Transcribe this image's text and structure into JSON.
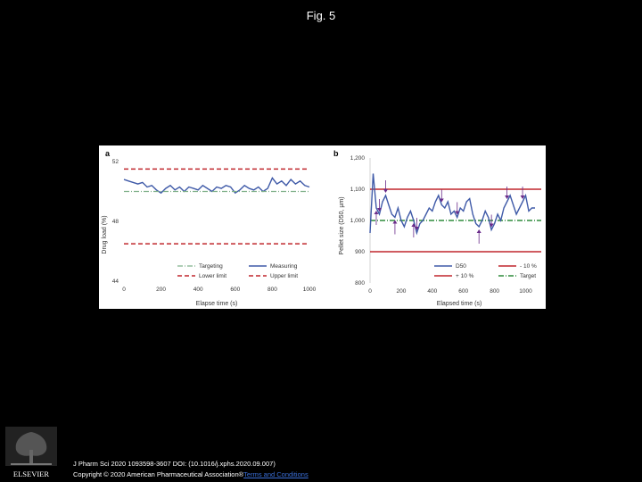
{
  "page": {
    "title": "Fig. 5"
  },
  "footer": {
    "citation": "J Pharm Sci 2020 1093598-3607 DOI: (10.1016/j.xphs.2020.09.007)",
    "copyright": "Copyright © 2020 American Pharmaceutical Association®",
    "link_text": "Terms and Conditions",
    "publisher": "ELSEVIER"
  },
  "colors": {
    "measuring": "#3f5aa8",
    "limit": "#c0272d",
    "target": "#7fb08a",
    "target_b": "#2e8b3b",
    "arrow": "#6a2b8a"
  },
  "chart_data": [
    {
      "panel": "a",
      "type": "line",
      "xlabel": "Elapse time (s)",
      "ylabel": "Drug load (%)",
      "xlim": [
        0,
        1000
      ],
      "ylim": [
        44,
        52
      ],
      "xticks": [
        0,
        200,
        400,
        600,
        800,
        1000
      ],
      "yticks": [
        44,
        48,
        52
      ],
      "series": [
        {
          "name": "Measuring",
          "x": [
            0,
            25,
            50,
            75,
            100,
            125,
            150,
            175,
            200,
            225,
            250,
            275,
            300,
            325,
            350,
            375,
            400,
            425,
            450,
            475,
            500,
            525,
            550,
            575,
            600,
            625,
            650,
            675,
            700,
            725,
            750,
            775,
            800,
            825,
            850,
            875,
            900,
            925,
            950,
            975,
            1000
          ],
          "y": [
            50.8,
            50.7,
            50.6,
            50.5,
            50.6,
            50.3,
            50.4,
            50.1,
            49.9,
            50.2,
            50.4,
            50.1,
            50.3,
            50.0,
            50.3,
            50.2,
            50.1,
            50.4,
            50.2,
            50.0,
            50.3,
            50.2,
            50.4,
            50.3,
            49.9,
            50.1,
            50.4,
            50.2,
            50.1,
            50.3,
            50.0,
            50.2,
            50.9,
            50.5,
            50.7,
            50.4,
            50.8,
            50.5,
            50.7,
            50.4,
            50.3
          ]
        },
        {
          "name": "Targeting",
          "x": [
            0,
            1000
          ],
          "y": [
            50.0,
            50.0
          ]
        },
        {
          "name": "Lower limit",
          "x": [
            0,
            1000
          ],
          "y": [
            46.5,
            46.5
          ]
        },
        {
          "name": "Upper limit",
          "x": [
            0,
            1000
          ],
          "y": [
            51.5,
            51.5
          ]
        }
      ],
      "legend": [
        "Targeting",
        "Measuring",
        "Lower limit",
        "Upper limit"
      ]
    },
    {
      "panel": "b",
      "type": "line",
      "xlabel": "Elapsed time (s)",
      "ylabel": "Pellet size (D50, µm)",
      "xlim": [
        0,
        1100
      ],
      "ylim": [
        800,
        1200
      ],
      "xticks": [
        0,
        200,
        400,
        600,
        800,
        1000
      ],
      "ytick_labels": [
        "800",
        "900",
        "1,000",
        "1,100",
        "1,200"
      ],
      "yticks": [
        800,
        900,
        1000,
        1100,
        1200
      ],
      "series": [
        {
          "name": "D50",
          "x": [
            0,
            20,
            40,
            60,
            80,
            100,
            120,
            140,
            160,
            180,
            200,
            220,
            240,
            260,
            280,
            300,
            320,
            340,
            360,
            380,
            400,
            420,
            440,
            460,
            480,
            500,
            520,
            540,
            560,
            580,
            600,
            620,
            640,
            660,
            680,
            700,
            720,
            740,
            760,
            780,
            800,
            820,
            840,
            860,
            880,
            900,
            920,
            940,
            960,
            980,
            1000,
            1020,
            1040,
            1060
          ],
          "y": [
            960,
            1150,
            1040,
            1020,
            1060,
            1080,
            1050,
            1020,
            1010,
            1040,
            1000,
            980,
            1010,
            1030,
            1000,
            960,
            990,
            1000,
            1020,
            1040,
            1030,
            1060,
            1080,
            1050,
            1040,
            1060,
            1020,
            1030,
            1010,
            1040,
            1030,
            1060,
            1070,
            1020,
            990,
            980,
            1000,
            1030,
            1010,
            970,
            990,
            1020,
            1000,
            1040,
            1060,
            1080,
            1050,
            1020,
            1040,
            1060,
            1080,
            1030,
            1040,
            1040
          ]
        },
        {
          "name": "- 10 %",
          "x": [
            0,
            1100
          ],
          "y": [
            900,
            900
          ]
        },
        {
          "name": "+ 10 %",
          "x": [
            0,
            1100
          ],
          "y": [
            1100,
            1100
          ]
        },
        {
          "name": "Target",
          "x": [
            0,
            1100
          ],
          "y": [
            1000,
            1000
          ]
        }
      ],
      "arrows_down_x": [
        60,
        100,
        300,
        460,
        560,
        780,
        880,
        980
      ],
      "arrows_up_x": [
        40,
        160,
        280,
        700
      ],
      "legend": [
        "D50",
        "- 10 %",
        "+ 10 %",
        "Target"
      ]
    }
  ]
}
